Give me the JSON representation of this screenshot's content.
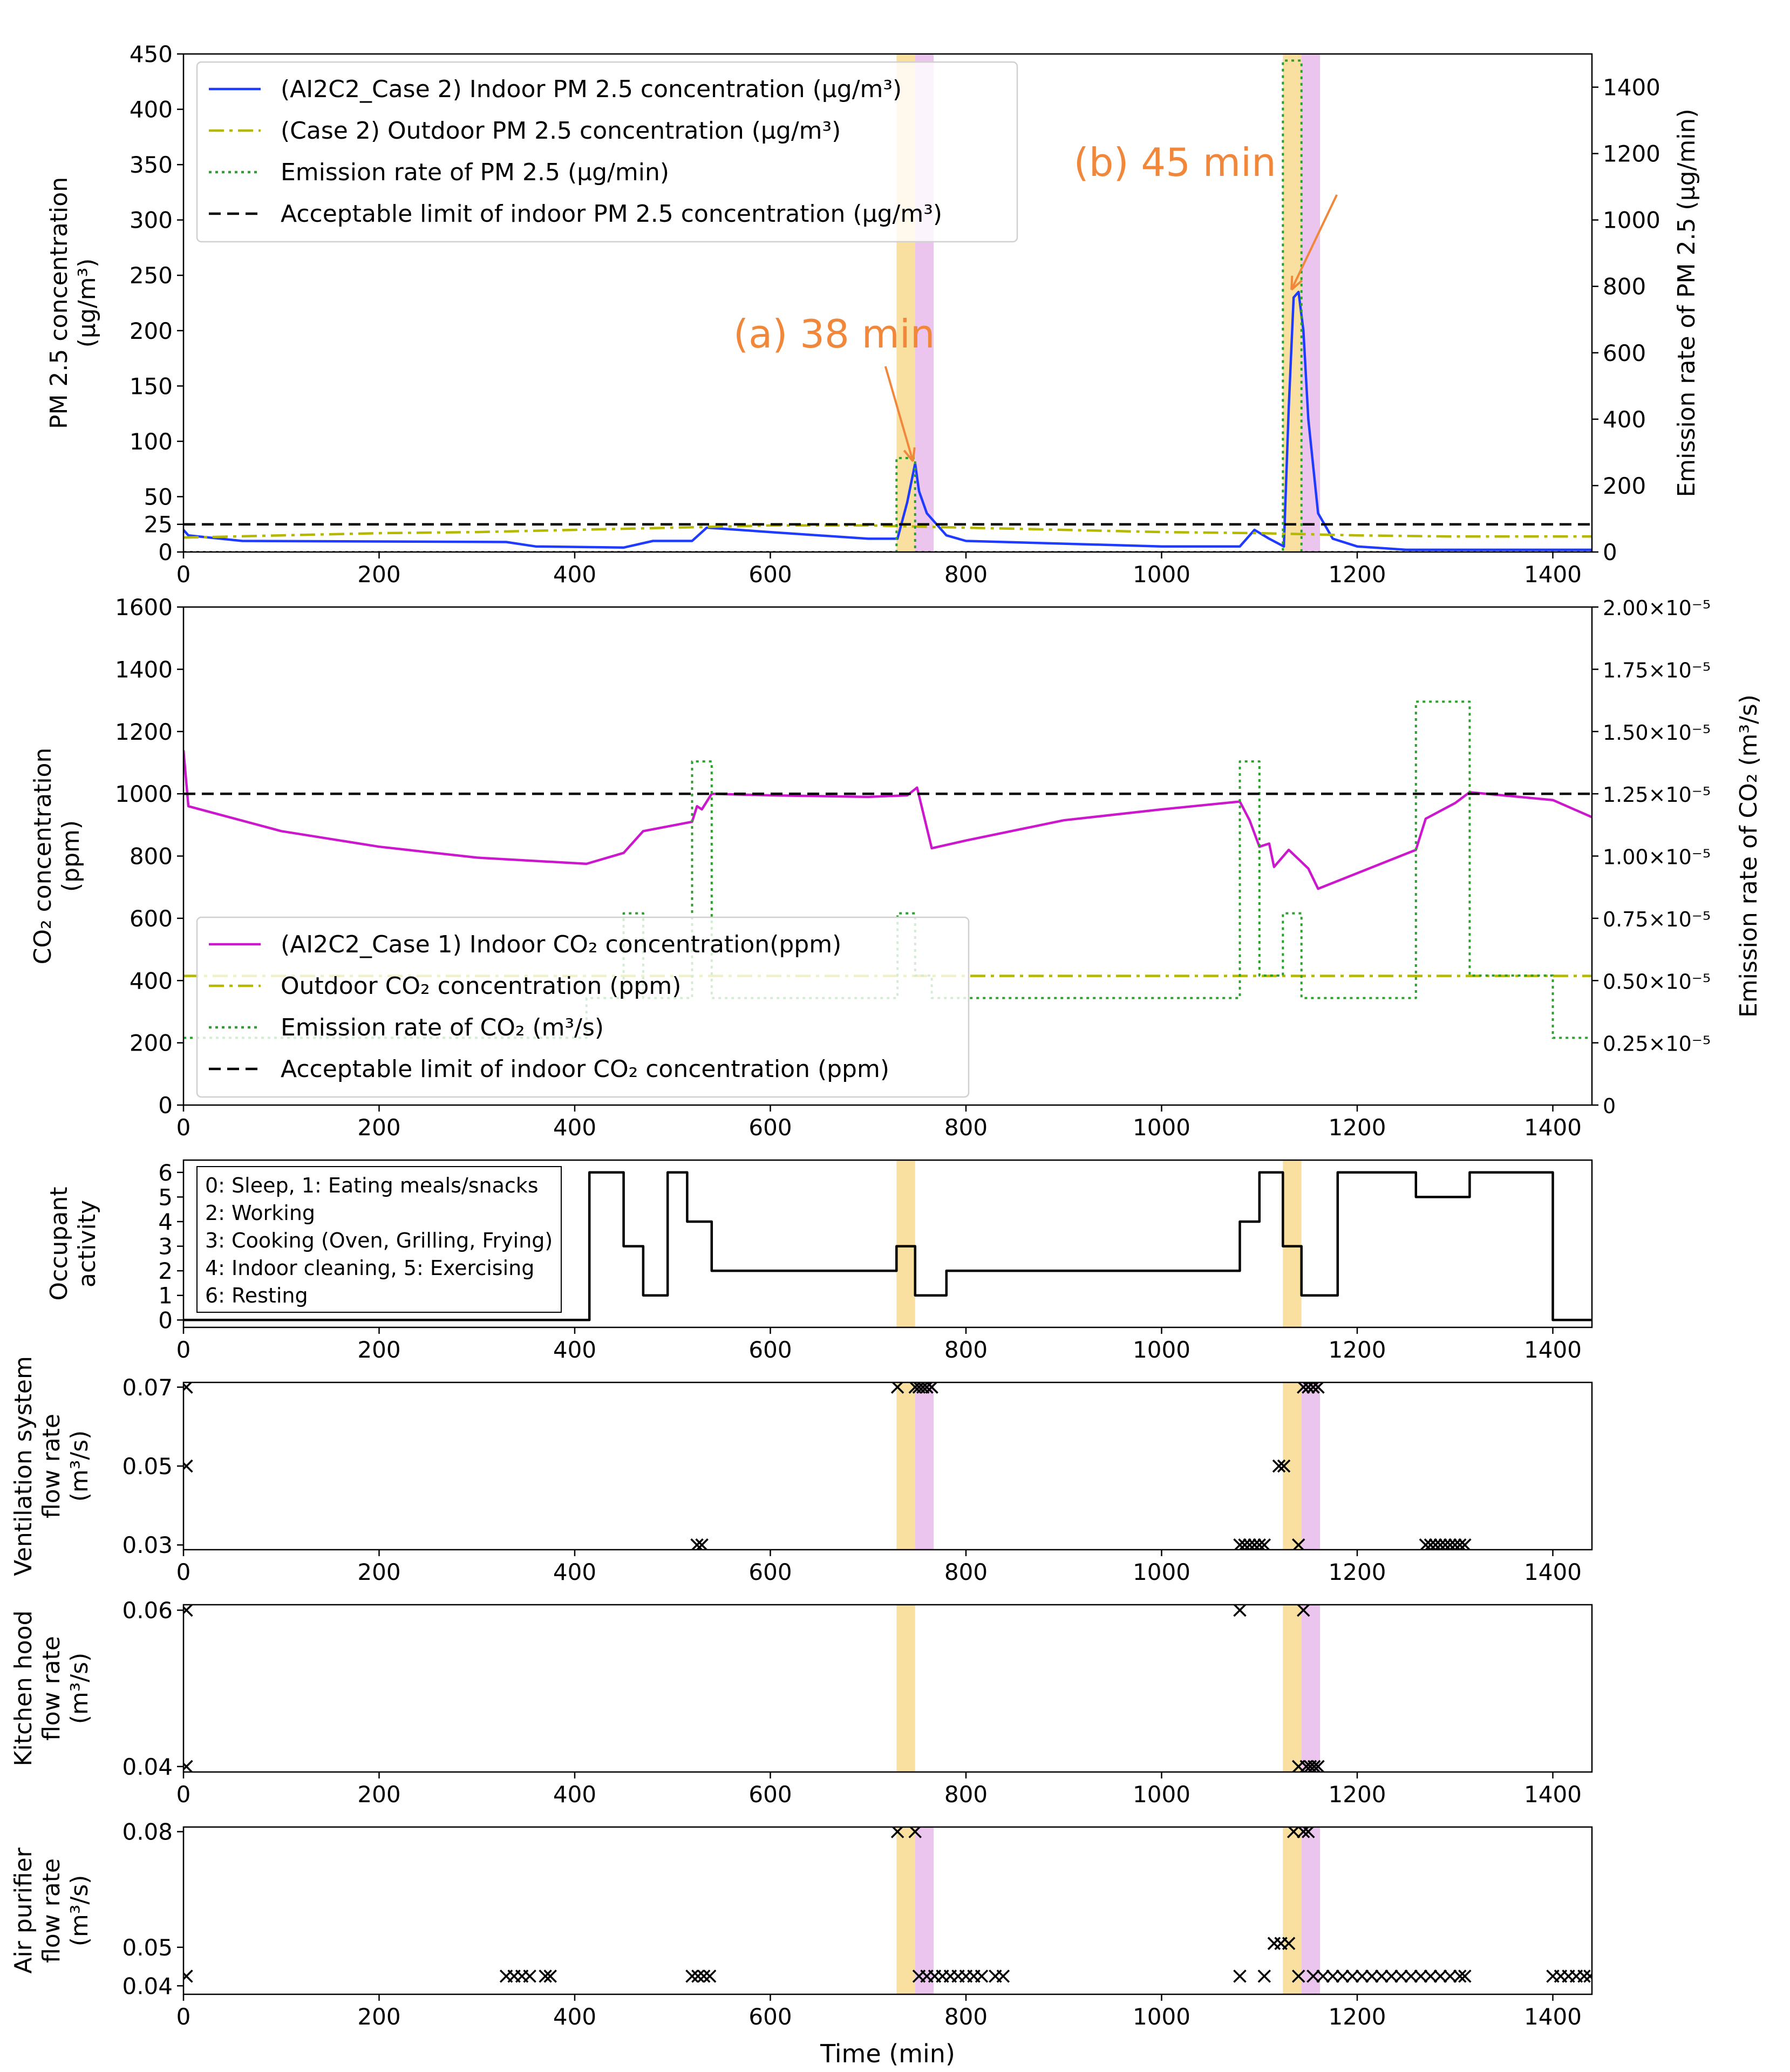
{
  "figure": {
    "xlabel": "Time (min)"
  },
  "chart_data": [
    {
      "type": "line",
      "id": "pm25",
      "ylabel_lines": [
        "PM 2.5 concentration",
        "(µg/m³)"
      ],
      "ylabel2": "Emission rate of PM 2.5 (µg/min)",
      "xlim": [
        0,
        1440
      ],
      "ylim": [
        0,
        450
      ],
      "ylim2": [
        0,
        1500
      ],
      "xticks": [
        0,
        200,
        400,
        600,
        800,
        1000,
        1200,
        1400
      ],
      "yticks": [
        0,
        25,
        50,
        100,
        150,
        200,
        250,
        300,
        350,
        400,
        450
      ],
      "yticks2": [
        0,
        200,
        400,
        600,
        800,
        1000,
        1200,
        1400
      ],
      "bands": [
        {
          "x0": 729,
          "x1": 748,
          "color": "#f5c242"
        },
        {
          "x0": 748,
          "x1": 767,
          "color": "#d98be0"
        },
        {
          "x0": 1124,
          "x1": 1143,
          "color": "#f5c242"
        },
        {
          "x0": 1143,
          "x1": 1162,
          "color": "#d98be0"
        }
      ],
      "series": [
        {
          "name": "(AI2C2_Case 2) Indoor PM 2.5 concentration (µg/m³)",
          "style": "solid",
          "color": "#1f3bff",
          "axis": "left",
          "x": [
            0,
            5,
            60,
            330,
            360,
            450,
            480,
            520,
            535,
            600,
            700,
            730,
            740,
            748,
            752,
            760,
            780,
            800,
            1000,
            1080,
            1095,
            1110,
            1125,
            1130,
            1135,
            1140,
            1145,
            1150,
            1160,
            1175,
            1200,
            1250,
            1440
          ],
          "y": [
            20,
            15,
            10,
            9,
            5,
            4,
            10,
            10,
            22,
            18,
            12,
            12,
            45,
            80,
            55,
            35,
            15,
            10,
            5,
            5,
            20,
            12,
            5,
            130,
            230,
            235,
            200,
            120,
            35,
            12,
            5,
            2,
            2
          ]
        },
        {
          "name": "(Case 2) Outdoor PM 2.5 concentration (µg/m³)",
          "style": "dashdot",
          "color": "#b5b800",
          "axis": "left",
          "x": [
            0,
            100,
            200,
            300,
            400,
            500,
            600,
            700,
            800,
            900,
            1000,
            1100,
            1200,
            1300,
            1440
          ],
          "y": [
            13,
            15,
            17,
            18,
            20,
            22,
            24,
            24,
            22,
            20,
            18,
            17,
            15,
            14,
            14
          ]
        },
        {
          "name": "Emission rate of PM 2.5 (µg/min)",
          "style": "dotted",
          "color": "#2ca02c",
          "axis": "right",
          "x": [
            0,
            729,
            729,
            748,
            748,
            1124,
            1124,
            1143,
            1143,
            1440
          ],
          "y": [
            0,
            0,
            283,
            283,
            0,
            0,
            1480,
            1480,
            0,
            0
          ]
        },
        {
          "name": "Acceptable limit of indoor PM 2.5 concentration (µg/m³)",
          "style": "dashed",
          "color": "#000000",
          "axis": "left",
          "x": [
            0,
            1440
          ],
          "y": [
            25,
            25
          ]
        }
      ],
      "annotations": [
        {
          "text": "(a) 38 min",
          "x": 748,
          "y": 80
        },
        {
          "text": "(b) 45 min",
          "x": 1135,
          "y": 235
        }
      ]
    },
    {
      "type": "line",
      "id": "co2",
      "ylabel_lines": [
        "CO₂ concentration",
        "(ppm)"
      ],
      "ylabel2": "Emission rate of CO₂ (m³/s)",
      "xlim": [
        0,
        1440
      ],
      "ylim": [
        0,
        1600
      ],
      "ylim2": [
        0,
        2.0
      ],
      "xticks": [
        0,
        200,
        400,
        600,
        800,
        1000,
        1200,
        1400
      ],
      "yticks": [
        0,
        200,
        400,
        600,
        800,
        1000,
        1200,
        1400,
        1600
      ],
      "yticks2": [
        0,
        0.25,
        0.5,
        0.75,
        1.0,
        1.25,
        1.5,
        1.75,
        2.0
      ],
      "yticks2_labels": [
        "0",
        "0.25×10⁻⁵",
        "0.50×10⁻⁵",
        "0.75×10⁻⁵",
        "1.00×10⁻⁵",
        "1.25×10⁻⁵",
        "1.50×10⁻⁵",
        "1.75×10⁻⁵",
        "2.00×10⁻⁵"
      ],
      "series": [
        {
          "name": "(AI2C2_Case 1) Indoor CO₂ concentration(ppm)",
          "style": "solid",
          "color": "#cc18cc",
          "axis": "left",
          "x": [
            0,
            5,
            100,
            200,
            300,
            412,
            450,
            470,
            520,
            525,
            530,
            540,
            600,
            700,
            740,
            750,
            765,
            800,
            900,
            1000,
            1080,
            1090,
            1100,
            1110,
            1115,
            1130,
            1140,
            1150,
            1160,
            1260,
            1270,
            1300,
            1315,
            1400,
            1440
          ],
          "y": [
            1140,
            960,
            880,
            830,
            795,
            775,
            810,
            880,
            910,
            960,
            950,
            1000,
            995,
            990,
            995,
            1020,
            825,
            850,
            915,
            950,
            975,
            915,
            830,
            840,
            765,
            820,
            790,
            760,
            695,
            820,
            920,
            970,
            1005,
            980,
            925
          ]
        },
        {
          "name": "Outdoor CO₂ concentration (ppm)",
          "style": "dashdot",
          "color": "#b5b800",
          "axis": "left",
          "x": [
            0,
            1440
          ],
          "y": [
            415,
            415
          ]
        },
        {
          "name": "Emission rate of CO₂ (m³/s)",
          "style": "dotted",
          "color": "#2ca02c",
          "axis": "right",
          "x": [
            0,
            412,
            412,
            450,
            450,
            470,
            470,
            500,
            500,
            520,
            520,
            540,
            540,
            730,
            730,
            748,
            748,
            765,
            765,
            1080,
            1080,
            1100,
            1100,
            1124,
            1124,
            1143,
            1143,
            1260,
            1260,
            1315,
            1315,
            1400,
            1400,
            1440
          ],
          "y": [
            0.27,
            0.27,
            0.43,
            0.43,
            0.77,
            0.77,
            0.43,
            0.43,
            0.43,
            0.43,
            1.38,
            1.38,
            0.43,
            0.43,
            0.77,
            0.77,
            0.52,
            0.52,
            0.43,
            0.43,
            1.38,
            1.38,
            0.52,
            0.52,
            0.77,
            0.77,
            0.43,
            0.43,
            1.62,
            1.62,
            0.52,
            0.52,
            0.27,
            0.27
          ]
        },
        {
          "name": "Acceptable limit of indoor CO₂ concentration (ppm)",
          "style": "dashed",
          "color": "#000000",
          "axis": "left",
          "x": [
            0,
            1440
          ],
          "y": [
            1000,
            1000
          ]
        }
      ]
    },
    {
      "type": "line",
      "id": "activity",
      "ylabel_lines": [
        "Occupant",
        "activity"
      ],
      "xlim": [
        0,
        1440
      ],
      "ylim": [
        -0.3,
        6.5
      ],
      "xticks": [
        0,
        200,
        400,
        600,
        800,
        1000,
        1200,
        1400
      ],
      "yticks": [
        0,
        1,
        2,
        3,
        4,
        5,
        6
      ],
      "bands": [
        {
          "x0": 729,
          "x1": 748,
          "color": "#f5c242"
        },
        {
          "x0": 1124,
          "x1": 1143,
          "color": "#f5c242"
        }
      ],
      "legend_text": [
        "0: Sleep, 1: Eating meals/snacks",
        "2: Working",
        "3: Cooking (Oven, Grilling, Frying)",
        "4: Indoor cleaning, 5: Exercising",
        "6: Resting"
      ],
      "series": [
        {
          "name": "activity",
          "style": "step",
          "color": "#000000",
          "x": [
            0,
            415,
            415,
            450,
            450,
            470,
            470,
            495,
            495,
            515,
            515,
            540,
            540,
            729,
            729,
            748,
            748,
            780,
            780,
            1080,
            1080,
            1100,
            1100,
            1124,
            1124,
            1143,
            1143,
            1180,
            1180,
            1260,
            1260,
            1315,
            1315,
            1400,
            1400,
            1440
          ],
          "y": [
            0,
            0,
            6,
            6,
            3,
            3,
            1,
            1,
            6,
            6,
            4,
            4,
            2,
            2,
            3,
            3,
            1,
            1,
            2,
            2,
            4,
            4,
            6,
            6,
            3,
            3,
            1,
            1,
            6,
            6,
            5,
            5,
            6,
            6,
            0,
            0
          ]
        }
      ]
    },
    {
      "type": "scatter",
      "id": "ventilation",
      "ylabel_lines": [
        "Ventilation system",
        "flow rate",
        "(m³/s)"
      ],
      "xlim": [
        0,
        1440
      ],
      "ylim": [
        0.0288,
        0.0712
      ],
      "xticks": [
        0,
        200,
        400,
        600,
        800,
        1000,
        1200,
        1400
      ],
      "yticks": [
        0.03,
        0.05,
        0.07
      ],
      "bands": [
        {
          "x0": 729,
          "x1": 748,
          "color": "#f5c242"
        },
        {
          "x0": 748,
          "x1": 767,
          "color": "#d98be0"
        },
        {
          "x0": 1124,
          "x1": 1143,
          "color": "#f5c242"
        },
        {
          "x0": 1143,
          "x1": 1162,
          "color": "#d98be0"
        }
      ],
      "series": [
        {
          "name": "ventilation flow rate",
          "marker": "x",
          "color": "#000000",
          "x": [
            3,
            3,
            525,
            530,
            730,
            748,
            752,
            756,
            760,
            765,
            1080,
            1085,
            1090,
            1095,
            1100,
            1105,
            1120,
            1125,
            1140,
            1145,
            1150,
            1155,
            1160,
            1270,
            1275,
            1280,
            1285,
            1290,
            1295,
            1300,
            1305,
            1310
          ],
          "y": [
            0.07,
            0.05,
            0.03,
            0.03,
            0.07,
            0.07,
            0.07,
            0.07,
            0.07,
            0.07,
            0.03,
            0.03,
            0.03,
            0.03,
            0.03,
            0.03,
            0.05,
            0.05,
            0.03,
            0.07,
            0.07,
            0.07,
            0.07,
            0.03,
            0.03,
            0.03,
            0.03,
            0.03,
            0.03,
            0.03,
            0.03,
            0.03
          ]
        }
      ]
    },
    {
      "type": "scatter",
      "id": "hood",
      "ylabel_lines": [
        "Kitchen hood",
        "flow rate",
        "(m³/s)"
      ],
      "xlim": [
        0,
        1440
      ],
      "ylim": [
        0.0393,
        0.0607
      ],
      "xticks": [
        0,
        200,
        400,
        600,
        800,
        1000,
        1200,
        1400
      ],
      "yticks": [
        0.04,
        0.06
      ],
      "bands": [
        {
          "x0": 729,
          "x1": 748,
          "color": "#f5c242"
        },
        {
          "x0": 1124,
          "x1": 1143,
          "color": "#f5c242"
        },
        {
          "x0": 1143,
          "x1": 1162,
          "color": "#d98be0"
        }
      ],
      "series": [
        {
          "name": "kitchen hood flow rate",
          "marker": "x",
          "color": "#000000",
          "x": [
            3,
            3,
            1080,
            1140,
            1145,
            1148,
            1152,
            1156,
            1160
          ],
          "y": [
            0.06,
            0.04,
            0.06,
            0.04,
            0.06,
            0.04,
            0.04,
            0.04,
            0.04
          ]
        }
      ]
    },
    {
      "type": "scatter",
      "id": "purifier",
      "ylabel_lines": [
        "Air purifier",
        "flow rate",
        "(m³/s)"
      ],
      "xlim": [
        0,
        1440
      ],
      "ylim": [
        0.0378,
        0.0812
      ],
      "xticks": [
        0,
        200,
        400,
        600,
        800,
        1000,
        1200,
        1400
      ],
      "yticks": [
        0.04,
        0.05,
        0.08
      ],
      "bands": [
        {
          "x0": 729,
          "x1": 748,
          "color": "#f5c242"
        },
        {
          "x0": 748,
          "x1": 767,
          "color": "#d98be0"
        },
        {
          "x0": 1124,
          "x1": 1143,
          "color": "#f5c242"
        },
        {
          "x0": 1143,
          "x1": 1162,
          "color": "#d98be0"
        }
      ],
      "series": [
        {
          "name": "air purifier flow rate",
          "marker": "x",
          "color": "#000000",
          "x": [
            3,
            330,
            338,
            346,
            354,
            370,
            375,
            520,
            526,
            532,
            538,
            730,
            748,
            752,
            760,
            768,
            776,
            784,
            792,
            800,
            808,
            816,
            830,
            838,
            1080,
            1105,
            1115,
            1122,
            1130,
            1135,
            1140,
            1145,
            1150,
            1155,
            1165,
            1175,
            1185,
            1195,
            1205,
            1215,
            1225,
            1235,
            1245,
            1255,
            1265,
            1275,
            1285,
            1295,
            1305,
            1310,
            1400,
            1408,
            1416,
            1424,
            1432,
            1438
          ],
          "y": [
            0.0425,
            0.0425,
            0.0425,
            0.0425,
            0.0425,
            0.0425,
            0.0425,
            0.0425,
            0.0425,
            0.0425,
            0.0425,
            0.08,
            0.08,
            0.0425,
            0.0425,
            0.0425,
            0.0425,
            0.0425,
            0.0425,
            0.0425,
            0.0425,
            0.0425,
            0.0425,
            0.0425,
            0.0425,
            0.0425,
            0.051,
            0.051,
            0.051,
            0.08,
            0.0425,
            0.08,
            0.08,
            0.0425,
            0.0425,
            0.0425,
            0.0425,
            0.0425,
            0.0425,
            0.0425,
            0.0425,
            0.0425,
            0.0425,
            0.0425,
            0.0425,
            0.0425,
            0.0425,
            0.0425,
            0.0425,
            0.0425,
            0.0425,
            0.0425,
            0.0425,
            0.0425,
            0.0425,
            0.0425
          ]
        }
      ]
    }
  ]
}
